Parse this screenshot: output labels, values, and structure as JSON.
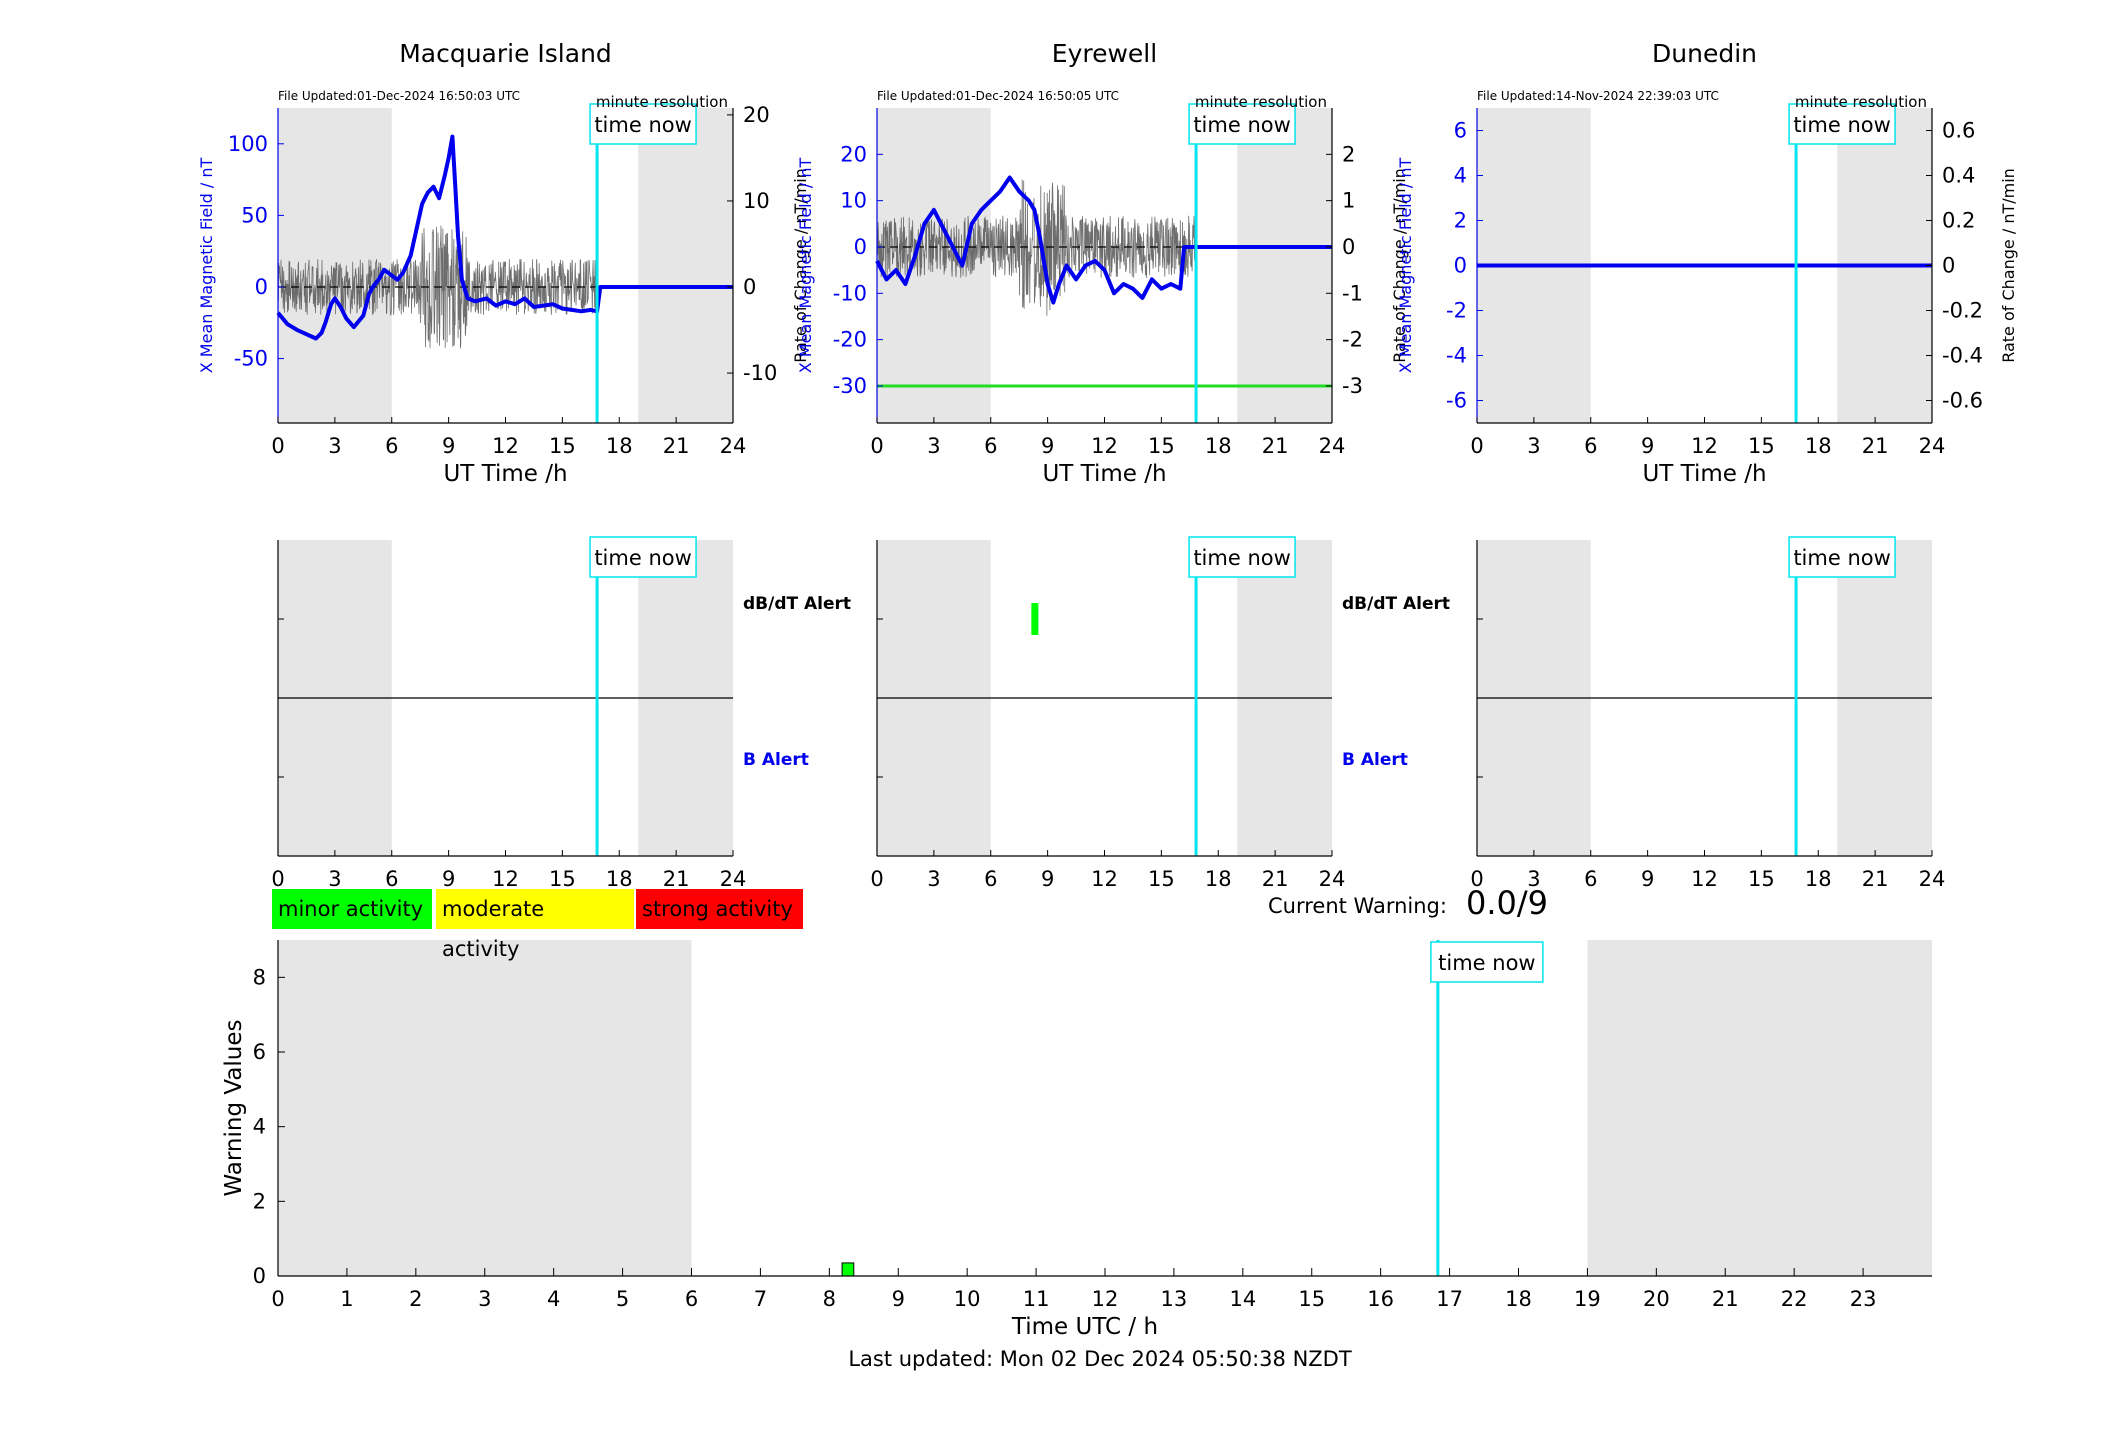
{
  "colors": {
    "field": "#0000ee",
    "rate": "#555555",
    "time_now": "#00e5ee",
    "night": "#e6e6e6",
    "minor": "#00ff00",
    "moderate": "#ffff00",
    "strong": "#ff0000",
    "threshold": "#00dd00"
  },
  "legend": {
    "minor": "minor activity",
    "moderate": "moderate activity",
    "strong": "strong activity"
  },
  "current_warning": {
    "label": "Current Warning:",
    "value": "0.0/9"
  },
  "footer": {
    "last_updated": "Last updated: Mon 02 Dec 2024 05:50:38 NZDT"
  },
  "alert_labels": {
    "dbdt": "dB/dT Alert",
    "b": "B Alert"
  },
  "time_now_label": "time now",
  "chart_data": [
    {
      "type": "line",
      "title": "Macquarie Island",
      "file_updated": "File Updated:01-Dec-2024 16:50:03 UTC",
      "resolution": "minute resolution",
      "xlabel": "UT Time /h",
      "ylabel": "X Mean Magnetic Field / nT",
      "y2label": "Rate of Change / nT/min",
      "xlim": [
        0,
        24
      ],
      "xticks": [
        0,
        3,
        6,
        9,
        12,
        15,
        18,
        21,
        24
      ],
      "ylim": [
        -95,
        125
      ],
      "yticks": [
        -50,
        0,
        50,
        100
      ],
      "y2lim": [
        -15.8,
        20.8
      ],
      "y2ticks": [
        -10,
        0,
        10,
        20
      ],
      "night": [
        [
          0,
          6
        ],
        [
          19,
          24
        ]
      ],
      "time_now": 16.83,
      "series": [
        {
          "kind": "field",
          "x": [
            0,
            0.5,
            1.0,
            1.5,
            2.0,
            2.3,
            2.5,
            2.8,
            3.0,
            3.3,
            3.6,
            4.0,
            4.5,
            4.8,
            5.0,
            5.3,
            5.6,
            6.0,
            6.3,
            6.6,
            7.0,
            7.3,
            7.6,
            7.9,
            8.2,
            8.5,
            8.8,
            9.0,
            9.2,
            9.35,
            9.5,
            9.7,
            10.0,
            10.4,
            11.0,
            11.5,
            12.0,
            12.5,
            13.0,
            13.5,
            14.0,
            14.5,
            15.0,
            15.5,
            16.0,
            16.5,
            16.83,
            17.0,
            24
          ],
          "y": [
            -18,
            -26,
            -30,
            -33,
            -36,
            -32,
            -25,
            -12,
            -8,
            -14,
            -22,
            -28,
            -20,
            -5,
            0,
            5,
            12,
            8,
            5,
            10,
            22,
            40,
            58,
            66,
            70,
            62,
            78,
            90,
            105,
            70,
            35,
            5,
            -8,
            -10,
            -8,
            -13,
            -10,
            -12,
            -8,
            -14,
            -13,
            -12,
            -15,
            -16,
            -17,
            -16,
            -17,
            0,
            0
          ]
        },
        {
          "kind": "rate",
          "y2_band": [
            -8,
            5
          ]
        }
      ]
    },
    {
      "type": "line",
      "title": "Eyrewell",
      "file_updated": "File Updated:01-Dec-2024 16:50:05 UTC",
      "resolution": "minute resolution",
      "xlabel": "UT Time /h",
      "ylabel": "X Mean Magnetic Field / nT",
      "y2label": "Rate of Change / nT/min",
      "xlim": [
        0,
        24
      ],
      "xticks": [
        0,
        3,
        6,
        9,
        12,
        15,
        18,
        21,
        24
      ],
      "ylim": [
        -38,
        30
      ],
      "yticks": [
        -30,
        -20,
        -10,
        0,
        10,
        20
      ],
      "y2lim": [
        -3.8,
        3.0
      ],
      "y2ticks": [
        -3,
        -2,
        -1,
        0,
        1,
        2
      ],
      "threshold": -30,
      "night": [
        [
          0,
          6
        ],
        [
          19,
          24
        ]
      ],
      "time_now": 16.83,
      "series": [
        {
          "kind": "field",
          "x": [
            0,
            0.5,
            1.0,
            1.5,
            2.0,
            2.5,
            3.0,
            3.5,
            4.0,
            4.5,
            5.0,
            5.5,
            6.0,
            6.5,
            7.0,
            7.5,
            8.0,
            8.3,
            8.6,
            9.0,
            9.3,
            9.6,
            10.0,
            10.5,
            11.0,
            11.5,
            12.0,
            12.5,
            13.0,
            13.5,
            14.0,
            14.5,
            15.0,
            15.5,
            16.0,
            16.2,
            16.83,
            24
          ],
          "y": [
            -3,
            -7,
            -5,
            -8,
            -2,
            5,
            8,
            4,
            0,
            -4,
            5,
            8,
            10,
            12,
            15,
            12,
            10,
            8,
            2,
            -8,
            -12,
            -8,
            -4,
            -7,
            -4,
            -3,
            -5,
            -10,
            -8,
            -9,
            -11,
            -7,
            -9,
            -8,
            -9,
            0,
            0,
            0
          ]
        },
        {
          "kind": "rate",
          "y2_band": [
            -1.5,
            1.2
          ]
        }
      ]
    },
    {
      "type": "line",
      "title": "Dunedin",
      "file_updated": "File Updated:14-Nov-2024 22:39:03 UTC",
      "resolution": "minute resolution",
      "xlabel": "UT Time /h",
      "ylabel": "X Mean Magnetic Field / nT",
      "y2label": "Rate of Change / nT/min",
      "xlim": [
        0,
        24
      ],
      "xticks": [
        0,
        3,
        6,
        9,
        12,
        15,
        18,
        21,
        24
      ],
      "ylim": [
        -7,
        7
      ],
      "yticks": [
        -6,
        -4,
        -2,
        0,
        2,
        4,
        6
      ],
      "y2lim": [
        -0.7,
        0.7
      ],
      "y2ticks": [
        -0.6,
        -0.4,
        -0.2,
        0,
        0.2,
        0.4,
        0.6
      ],
      "night": [
        [
          0,
          6
        ],
        [
          19,
          24
        ]
      ],
      "time_now": 16.83,
      "series": [
        {
          "kind": "field",
          "x": [
            0,
            24
          ],
          "y": [
            0,
            0
          ]
        }
      ]
    },
    {
      "type": "bar",
      "panel": "alerts",
      "xlim": [
        0,
        24
      ],
      "xticks": [
        0,
        3,
        6,
        9,
        12,
        15,
        18,
        21,
        24
      ],
      "night": [
        [
          0,
          6
        ],
        [
          19,
          24
        ]
      ],
      "time_now": 16.83,
      "dbdt_alerts": [],
      "show_labels": true
    },
    {
      "type": "bar",
      "panel": "alerts",
      "xlim": [
        0,
        24
      ],
      "xticks": [
        0,
        3,
        6,
        9,
        12,
        15,
        18,
        21,
        24
      ],
      "night": [
        [
          0,
          6
        ],
        [
          19,
          24
        ]
      ],
      "time_now": 16.83,
      "dbdt_alerts": [
        8.3
      ],
      "show_labels": true
    },
    {
      "type": "bar",
      "panel": "alerts",
      "xlim": [
        0,
        24
      ],
      "xticks": [
        0,
        3,
        6,
        9,
        12,
        15,
        18,
        21,
        24
      ],
      "night": [
        [
          0,
          6
        ],
        [
          19,
          24
        ]
      ],
      "time_now": 16.83,
      "dbdt_alerts": [],
      "show_labels": false
    },
    {
      "type": "bar",
      "panel": "warning",
      "xlabel": "Time UTC / h",
      "ylabel": "Warning Values",
      "xlim": [
        0,
        24
      ],
      "xticks": [
        0,
        1,
        2,
        3,
        4,
        5,
        6,
        7,
        8,
        9,
        10,
        11,
        12,
        13,
        14,
        15,
        16,
        17,
        18,
        19,
        20,
        21,
        22,
        23
      ],
      "ylim": [
        0,
        9
      ],
      "yticks": [
        0,
        2,
        4,
        6,
        8
      ],
      "night": [
        [
          0,
          6
        ],
        [
          19,
          24
        ]
      ],
      "time_now": 16.83,
      "bars": [
        {
          "x": 8.27,
          "width": 0.17,
          "value": 0.35,
          "level": "minor"
        }
      ]
    }
  ]
}
